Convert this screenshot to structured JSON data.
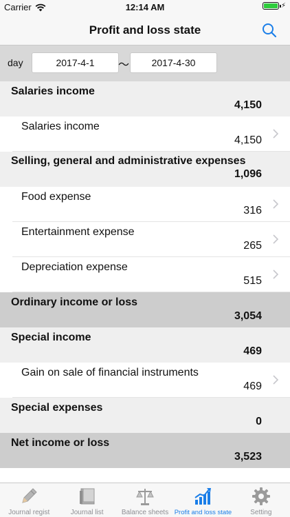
{
  "status_bar": {
    "carrier": "Carrier",
    "time": "12:14 AM"
  },
  "nav": {
    "title": "Profit and loss state",
    "search_icon": "search-icon"
  },
  "filter": {
    "label": "day",
    "from": "2017-4-1",
    "separator": "～",
    "to": "2017-4-30"
  },
  "rows": [
    {
      "type": "header",
      "label": "Salaries income",
      "value": "4,150"
    },
    {
      "type": "item",
      "label": "Salaries income",
      "value": "4,150"
    },
    {
      "type": "header",
      "label": "Selling, general and administrative expenses",
      "value": "1,096"
    },
    {
      "type": "item",
      "label": "Food expense",
      "value": "316"
    },
    {
      "type": "item",
      "label": "Entertainment expense",
      "value": "265"
    },
    {
      "type": "item",
      "label": "Depreciation expense",
      "value": "515"
    },
    {
      "type": "summary",
      "label": "Ordinary income or loss",
      "value": "3,054"
    },
    {
      "type": "header",
      "label": "Special income",
      "value": "469"
    },
    {
      "type": "item",
      "label": "Gain on sale of financial instruments",
      "value": "469"
    },
    {
      "type": "header",
      "label": "Special expenses",
      "value": "0"
    },
    {
      "type": "summary",
      "label": "Net income or loss",
      "value": "3,523"
    }
  ],
  "tabs": [
    {
      "label": "Journal regist",
      "icon": "pencil-icon",
      "active": false
    },
    {
      "label": "Journal list",
      "icon": "book-icon",
      "active": false
    },
    {
      "label": "Balance sheets",
      "icon": "scale-icon",
      "active": false
    },
    {
      "label": "Profit and loss state",
      "icon": "chart-icon",
      "active": true
    },
    {
      "label": "Setting",
      "icon": "gear-icon",
      "active": false
    }
  ],
  "colors": {
    "accent": "#1a7ee8",
    "header_bg": "#efefef",
    "summary_bg": "#cdcdcd",
    "battery": "#2ecc3c"
  }
}
